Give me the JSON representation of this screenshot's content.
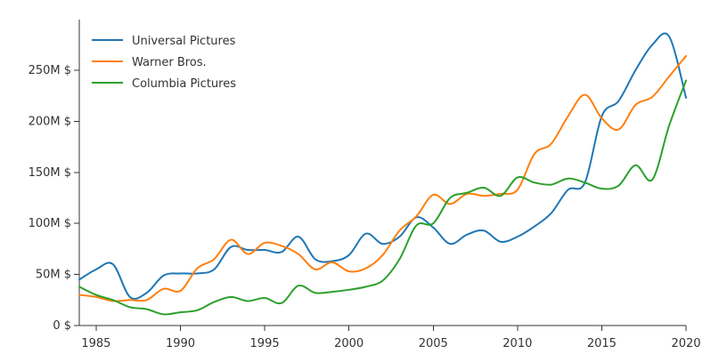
{
  "chart_data": {
    "type": "line",
    "title": "",
    "xlabel": "",
    "ylabel": "",
    "xlim": [
      1984,
      2020
    ],
    "ylim": [
      0,
      290000000
    ],
    "x_ticks": [
      1985,
      1990,
      1995,
      2000,
      2005,
      2010,
      2015,
      2020
    ],
    "y_ticks": [
      {
        "value": 0,
        "label": "0 $"
      },
      {
        "value": 50000000,
        "label": "50M $"
      },
      {
        "value": 100000000,
        "label": "100M $"
      },
      {
        "value": 150000000,
        "label": "150M $"
      },
      {
        "value": 200000000,
        "label": "200M $"
      },
      {
        "value": 250000000,
        "label": "250M $"
      }
    ],
    "grid": false,
    "legend_position": "top-left",
    "x": [
      1984,
      1985,
      1986,
      1987,
      1988,
      1989,
      1990,
      1991,
      1992,
      1993,
      1994,
      1995,
      1996,
      1997,
      1998,
      1999,
      2000,
      2001,
      2002,
      2003,
      2004,
      2005,
      2006,
      2007,
      2008,
      2009,
      2010,
      2011,
      2012,
      2013,
      2014,
      2015,
      2016,
      2017,
      2018,
      2019,
      2020
    ],
    "series": [
      {
        "name": "Universal Pictures",
        "color": "#1f77b4",
        "values": [
          45000000,
          55000000,
          60000000,
          28000000,
          32000000,
          49000000,
          51000000,
          51000000,
          55000000,
          77000000,
          74000000,
          74000000,
          72000000,
          87000000,
          65000000,
          63000000,
          69000000,
          90000000,
          80000000,
          87000000,
          106000000,
          96000000,
          80000000,
          89000000,
          93000000,
          82000000,
          87000000,
          97000000,
          110000000,
          133000000,
          140000000,
          205000000,
          220000000,
          250000000,
          275000000,
          283000000,
          223000000
        ]
      },
      {
        "name": "Warner Bros.",
        "color": "#ff7f0e",
        "values": [
          30000000,
          28000000,
          24000000,
          25000000,
          25000000,
          36000000,
          34000000,
          56000000,
          65000000,
          84000000,
          70000000,
          81000000,
          78000000,
          70000000,
          55000000,
          62000000,
          53000000,
          56000000,
          69000000,
          93000000,
          107000000,
          128000000,
          119000000,
          129000000,
          127000000,
          129000000,
          133000000,
          168000000,
          178000000,
          205000000,
          226000000,
          203000000,
          192000000,
          216000000,
          224000000,
          244000000,
          264000000
        ]
      },
      {
        "name": "Columbia Pictures",
        "color": "#2ca02c",
        "values": [
          38000000,
          30000000,
          25000000,
          18000000,
          16000000,
          11000000,
          13000000,
          15000000,
          23000000,
          28000000,
          24000000,
          27000000,
          22000000,
          39000000,
          32000000,
          33000000,
          35000000,
          38000000,
          44000000,
          65000000,
          98000000,
          100000000,
          125000000,
          130000000,
          135000000,
          127000000,
          145000000,
          140000000,
          138000000,
          144000000,
          140000000,
          134000000,
          137000000,
          157000000,
          143000000,
          196000000,
          240000000
        ]
      }
    ]
  }
}
